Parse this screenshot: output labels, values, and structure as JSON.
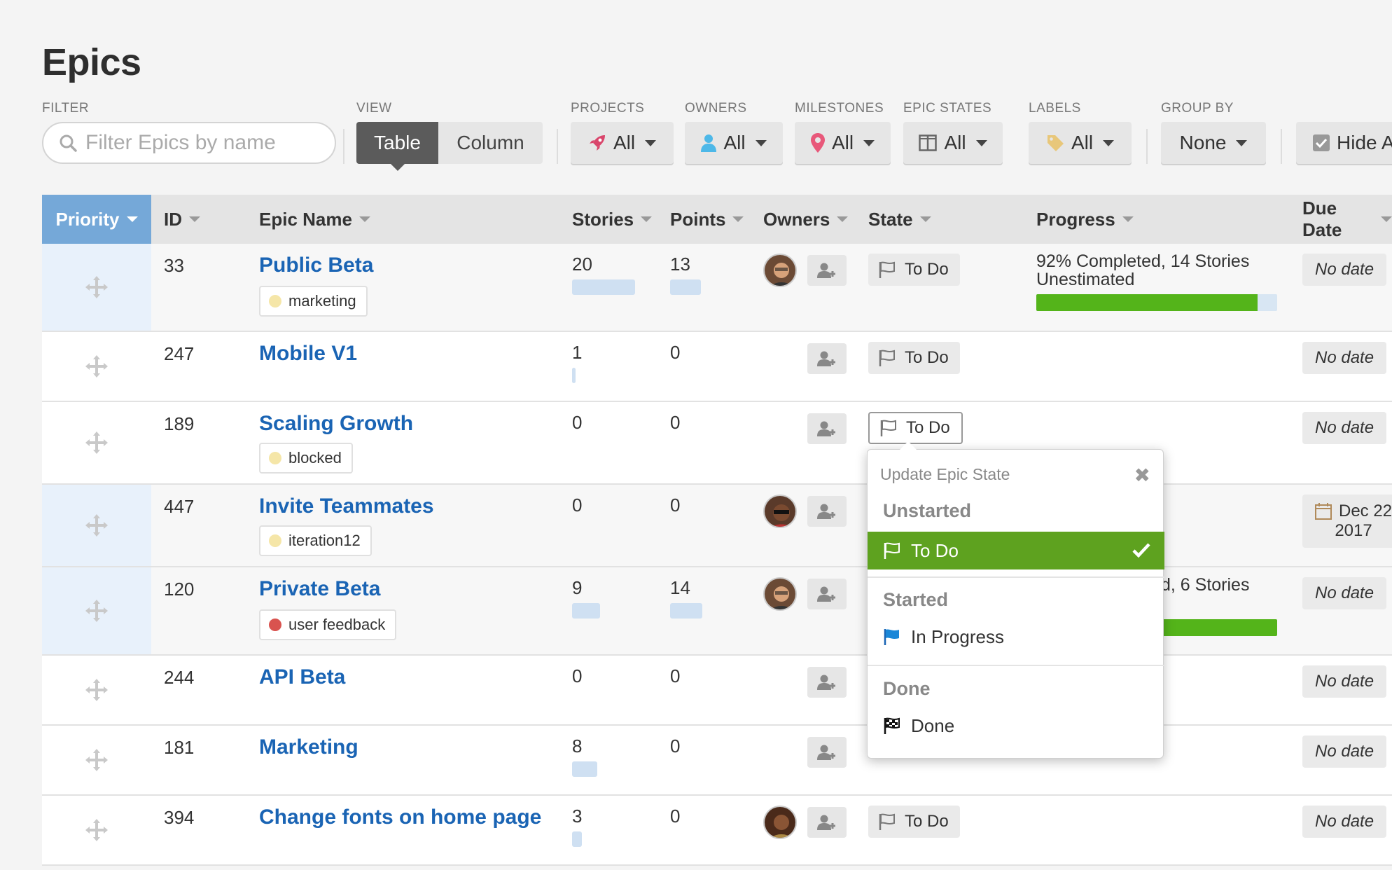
{
  "page": {
    "title": "Epics"
  },
  "toolbar": {
    "filter": {
      "label": "FILTER",
      "placeholder": "Filter Epics by name",
      "value": ""
    },
    "view": {
      "label": "VIEW",
      "options": [
        "Table",
        "Column"
      ],
      "selected": "Table"
    },
    "projects": {
      "label": "PROJECTS",
      "value": "All"
    },
    "owners": {
      "label": "OWNERS",
      "value": "All"
    },
    "milestones": {
      "label": "MILESTONES",
      "value": "All"
    },
    "epic_states": {
      "label": "EPIC STATES",
      "value": "All"
    },
    "labels": {
      "label": "LABELS",
      "value": "All"
    },
    "group_by": {
      "label": "GROUP BY",
      "value": "None"
    },
    "hide": {
      "label": "Hide A"
    }
  },
  "columns": {
    "priority": "Priority",
    "id": "ID",
    "epic_name": "Epic Name",
    "stories": "Stories",
    "points": "Points",
    "owners": "Owners",
    "state": "State",
    "progress": "Progress",
    "due_date": "Due Date"
  },
  "rows": [
    {
      "id": "33",
      "name": "Public Beta",
      "label": "marketing",
      "label_color": "#f5e6a8",
      "stories": "20",
      "points": "13",
      "has_owner": true,
      "state": "To Do",
      "progress_line1": "92% Completed, 14 Stories",
      "progress_line2": "Unestimated",
      "progress_pct": 92,
      "due": "No date"
    },
    {
      "id": "247",
      "name": "Mobile V1",
      "label": "",
      "stories": "1",
      "points": "0",
      "has_owner": false,
      "state": "To Do",
      "due": "No date"
    },
    {
      "id": "189",
      "name": "Scaling Growth",
      "label": "blocked",
      "label_color": "#f5e6a8",
      "stories": "0",
      "points": "0",
      "has_owner": false,
      "state": "To Do",
      "due": "No date"
    },
    {
      "id": "447",
      "name": "Invite Teammates",
      "label": "iteration12",
      "label_color": "#f5e6a8",
      "stories": "0",
      "points": "0",
      "has_owner": true,
      "state": "",
      "due_line1": "Dec 22",
      "due_line2": "2017"
    },
    {
      "id": "120",
      "name": "Private Beta",
      "label": "user feedback",
      "label_color": "#d9534f",
      "stories": "9",
      "points": "14",
      "has_owner": true,
      "state": "",
      "progress_line1": "d, 6 Stories",
      "due": "No date"
    },
    {
      "id": "244",
      "name": "API Beta",
      "label": "",
      "stories": "0",
      "points": "0",
      "has_owner": false,
      "state": "",
      "due": "No date"
    },
    {
      "id": "181",
      "name": "Marketing",
      "label": "",
      "stories": "8",
      "points": "0",
      "has_owner": false,
      "state": "",
      "due": "No date"
    },
    {
      "id": "394",
      "name": "Change fonts on home page",
      "label": "",
      "stories": "3",
      "points": "0",
      "has_owner": true,
      "state": "To Do",
      "due": "No date"
    }
  ],
  "popover": {
    "title": "Update Epic State",
    "sections": [
      {
        "name": "Unstarted",
        "items": [
          {
            "label": "To Do",
            "selected": true
          }
        ]
      },
      {
        "name": "Started",
        "items": [
          {
            "label": "In Progress",
            "selected": false
          }
        ]
      },
      {
        "name": "Done",
        "items": [
          {
            "label": "Done",
            "selected": false
          }
        ]
      }
    ]
  },
  "colors": {
    "accent_blue": "#1a64b4",
    "priority_header": "#75a8d8",
    "progress_green": "#54b41a",
    "selected_green": "#5ea21f"
  }
}
